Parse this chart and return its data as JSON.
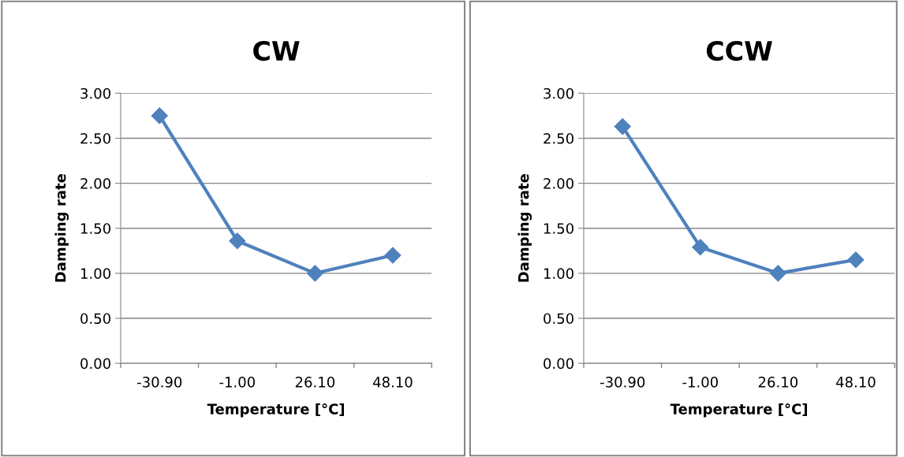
{
  "chart_data": [
    {
      "type": "line",
      "title": "CW",
      "xlabel": "Temperature [°C]",
      "ylabel": "Damping rate",
      "categories": [
        "-30.90",
        "-1.00",
        "26.10",
        "48.10"
      ],
      "series": [
        {
          "color": "#4f81bd",
          "values": [
            2.75,
            1.36,
            1.0,
            1.2
          ]
        }
      ],
      "ylim": [
        0,
        3
      ],
      "yticks": [
        {
          "value": 0,
          "label": "0.00"
        },
        {
          "value": 0.5,
          "label": "0.50"
        },
        {
          "value": 1,
          "label": "1.00"
        },
        {
          "value": 1.5,
          "label": "1.50"
        },
        {
          "value": 2,
          "label": "2.00"
        },
        {
          "value": 2.5,
          "label": "2.50"
        },
        {
          "value": 3,
          "label": "3.00"
        }
      ],
      "grid": "y",
      "marker": "diamond",
      "line_style": "solid"
    },
    {
      "type": "line",
      "title": "CCW",
      "xlabel": "Temperature [°C]",
      "ylabel": "Damping rate",
      "categories": [
        "-30.90",
        "-1.00",
        "26.10",
        "48.10"
      ],
      "series": [
        {
          "color": "#4f81bd",
          "values": [
            2.63,
            1.29,
            1.0,
            1.15
          ]
        }
      ],
      "ylim": [
        0,
        3
      ],
      "yticks": [
        {
          "value": 0,
          "label": "0.00"
        },
        {
          "value": 0.5,
          "label": "0.50"
        },
        {
          "value": 1,
          "label": "1.00"
        },
        {
          "value": 1.5,
          "label": "1.50"
        },
        {
          "value": 2,
          "label": "2.00"
        },
        {
          "value": 2.5,
          "label": "2.50"
        },
        {
          "value": 3,
          "label": "3.00"
        }
      ],
      "grid": "y",
      "marker": "diamond",
      "line_style": "solid"
    }
  ]
}
